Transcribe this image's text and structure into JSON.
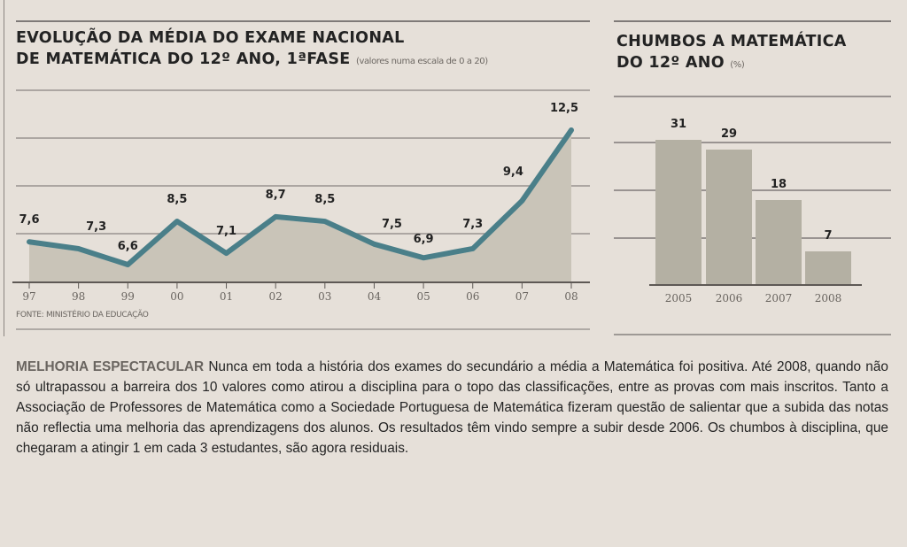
{
  "left_chart": {
    "title_line1": "EVOLUÇÃO DA MÉDIA DO EXAME NACIONAL",
    "title_line2": "DE MATEMÁTICA DO 12º ANO, 1ªFASE",
    "subtitle": "(valores numa escala de 0 a 20)",
    "source": "FONTE: MINISTÉRIO DA EDUCAÇÃO"
  },
  "right_chart": {
    "title_line1": "CHUMBOS A MATEMÁTICA",
    "title_line2": "DO 12º ANO",
    "subtitle": "(%)"
  },
  "article": {
    "lead": "MELHORIA ESPECTACULAR",
    "body": "Nunca em toda a história dos exames do secundário a média a Matemática foi positiva. Até 2008, quando não só ultrapassou a barreira dos 10 valores como atirou a disciplina para o topo das classificações, entre as provas com mais inscritos. Tanto a Associação de Professores de Matemática como a Sociedade Portuguesa de Matemática fizeram questão de salientar que a subida das notas não reflectia uma melhoria das aprendizagens dos alunos. Os resultados têm vindo sempre a subir desde 2006. Os chumbos à disciplina, que chegaram a atingir 1 em cada 3 estudantes, são agora residuais."
  },
  "colors": {
    "line": "#4a7f89",
    "area": "#c9c4b8",
    "bar": "#b4b0a3",
    "background": "#e6e0d9",
    "gridline": "#7f7a78"
  },
  "chart_data": [
    {
      "type": "area",
      "title": "EVOLUÇÃO DA MÉDIA DO EXAME NACIONAL DE MATEMÁTICA DO 12º ANO, 1ªFASE",
      "subtitle": "(valores numa escala de 0 a 20)",
      "categories": [
        "97",
        "98",
        "99",
        "00",
        "01",
        "02",
        "03",
        "04",
        "05",
        "06",
        "07",
        "08"
      ],
      "values": [
        7.6,
        7.3,
        6.6,
        8.5,
        7.1,
        8.7,
        8.5,
        7.5,
        6.9,
        7.3,
        9.4,
        12.5
      ],
      "labels": [
        "7,6",
        "7,3",
        "6,6",
        "8,5",
        "7,1",
        "8,7",
        "8,5",
        "7,5",
        "6,9",
        "7,3",
        "9,4",
        "12,5"
      ],
      "xlabel": "",
      "ylabel": "",
      "grid": true,
      "source": "FONTE: MINISTÉRIO DA EDUCAÇÃO"
    },
    {
      "type": "bar",
      "title": "CHUMBOS A MATEMÁTICA DO 12º ANO",
      "subtitle": "(%)",
      "categories": [
        "2005",
        "2006",
        "2007",
        "2008"
      ],
      "values": [
        31,
        29,
        18,
        7
      ],
      "labels": [
        "31",
        "29",
        "18",
        "7"
      ],
      "xlabel": "",
      "ylabel": "%",
      "grid": true
    }
  ]
}
